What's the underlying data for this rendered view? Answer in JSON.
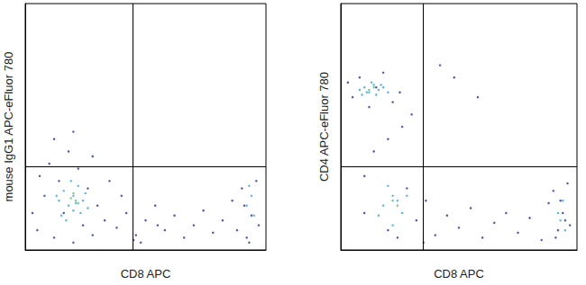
{
  "chart_data": [
    {
      "type": "scatter",
      "xlabel": "CD8 APC",
      "ylabel": "mouse IgG1 APC-eFluor 780",
      "xlim": [
        0,
        100
      ],
      "ylim": [
        0,
        100
      ],
      "tick_labels": false,
      "grid": false,
      "marker": "circle",
      "quadrant": {
        "x": 44.5,
        "y": 34
      },
      "series": [
        {
          "color": "#22309e",
          "x": [
            5,
            8,
            10,
            12,
            14,
            16,
            18,
            20,
            22,
            24,
            26,
            28,
            30,
            33,
            35,
            38,
            42,
            46,
            50,
            54,
            58,
            62,
            66,
            70,
            74,
            78,
            82,
            86,
            88,
            90,
            92,
            94,
            96,
            97,
            91,
            93,
            3,
            6,
            40,
            45,
            55,
            12,
            20,
            28,
            48
          ],
          "values": [
            8,
            22,
            35,
            5,
            28,
            15,
            40,
            3,
            33,
            10,
            25,
            6,
            18,
            12,
            28,
            9,
            15,
            6,
            12,
            18,
            8,
            14,
            5,
            10,
            16,
            7,
            12,
            20,
            8,
            25,
            5,
            14,
            28,
            10,
            18,
            3,
            15,
            30,
            22,
            4,
            10,
            45,
            48,
            38,
            3
          ]
        },
        {
          "color": "#35a8d6",
          "x": [
            14,
            16,
            18,
            20,
            22,
            24,
            26,
            15,
            19,
            23,
            21,
            17,
            25,
            13,
            20,
            92,
            94,
            95,
            93
          ],
          "values": [
            20,
            24,
            18,
            22,
            26,
            20,
            17,
            14,
            28,
            15,
            19,
            12,
            23,
            22,
            16,
            18,
            22,
            14,
            26
          ]
        },
        {
          "color": "#55c070",
          "x": [
            19,
            21,
            20,
            22
          ],
          "values": [
            21,
            20,
            23,
            19
          ]
        }
      ]
    },
    {
      "type": "scatter",
      "xlabel": "CD8 APC",
      "ylabel": "CD4 APC-eFluor 780",
      "xlim": [
        0,
        100
      ],
      "ylim": [
        0,
        100
      ],
      "tick_labels": false,
      "grid": false,
      "marker": "circle",
      "quadrant": {
        "x": 35,
        "y": 34
      },
      "series": [
        {
          "color": "#22309e",
          "x": [
            5,
            8,
            12,
            15,
            18,
            22,
            25,
            3,
            10,
            20,
            28,
            32,
            36,
            40,
            45,
            50,
            55,
            60,
            65,
            70,
            75,
            80,
            85,
            88,
            90,
            92,
            94,
            96,
            97,
            91,
            93,
            95,
            14,
            20,
            26,
            30,
            42,
            48,
            58,
            35,
            24,
            10
          ],
          "values": [
            62,
            70,
            58,
            66,
            72,
            60,
            64,
            68,
            30,
            8,
            25,
            12,
            20,
            6,
            14,
            9,
            17,
            5,
            11,
            15,
            7,
            13,
            4,
            19,
            24,
            8,
            15,
            27,
            10,
            5,
            20,
            12,
            40,
            45,
            50,
            55,
            75,
            70,
            62,
            3,
            5,
            15
          ]
        },
        {
          "color": "#35a8d6",
          "x": [
            8,
            10,
            12,
            14,
            16,
            18,
            20,
            9,
            13,
            17,
            11,
            15,
            22,
            18,
            20,
            24,
            26,
            16,
            28,
            22,
            92,
            94,
            95,
            93
          ],
          "values": [
            65,
            66,
            64,
            67,
            65,
            66,
            64,
            63,
            68,
            67,
            64,
            63,
            22,
            18,
            26,
            20,
            15,
            14,
            22,
            10,
            15,
            20,
            8,
            12
          ]
        },
        {
          "color": "#55c070",
          "x": [
            12,
            14,
            22,
            24
          ],
          "values": [
            65,
            66,
            20,
            18
          ]
        }
      ]
    }
  ]
}
